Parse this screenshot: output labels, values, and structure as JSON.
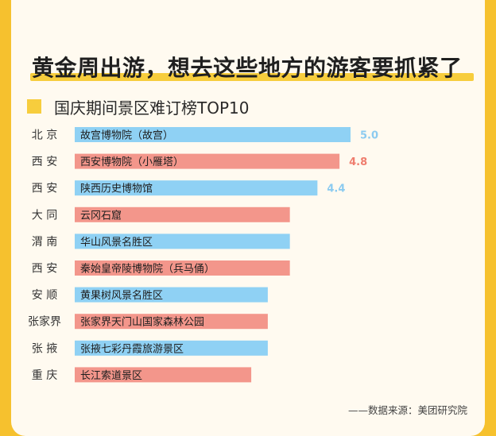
{
  "headline": "黄金周出游，想去这些地方的游客要抓紧了",
  "subtitle": "国庆期间景区难订榜TOP10",
  "source": "——数据来源：美团研究院",
  "colors": {
    "background": "#f6c12e",
    "card": "#fffaf0",
    "accent_yellow": "#f7cd3d",
    "blue_bar": "#8fd1f4",
    "blue_label": "#8ccbf0",
    "red_bar": "#f3968b",
    "red_label": "#ef7d6e"
  },
  "chart_data": {
    "type": "bar",
    "orientation": "horizontal",
    "title": "国庆期间景区难订榜TOP10",
    "cities": [
      "北 京",
      "西 安",
      "西 安",
      "大 同",
      "渭 南",
      "西 安",
      "安 顺",
      "张家界",
      "张 掖",
      "重 庆"
    ],
    "categories": [
      "故宫博物院（故宫）",
      "西安博物院（小雁塔）",
      "陕西历史博物馆",
      "云冈石窟",
      "华山风景名胜区",
      "秦始皇帝陵博物院（兵马俑）",
      "黄果树风景名胜区",
      "张家界天门山国家森林公园",
      "张掖七彩丹霞旅游景区",
      "长江索道景区"
    ],
    "values": [
      5.0,
      4.8,
      4.4,
      3.9,
      3.9,
      3.9,
      3.5,
      3.5,
      3.5,
      3.2
    ],
    "value_labels": [
      "5.0",
      "4.8",
      "4.4",
      "",
      "",
      "",
      "",
      "",
      "",
      ""
    ],
    "bar_colors": [
      "blue",
      "red",
      "blue",
      "red",
      "blue",
      "red",
      "blue",
      "red",
      "blue",
      "red"
    ],
    "xlim": [
      0,
      5.0
    ]
  }
}
